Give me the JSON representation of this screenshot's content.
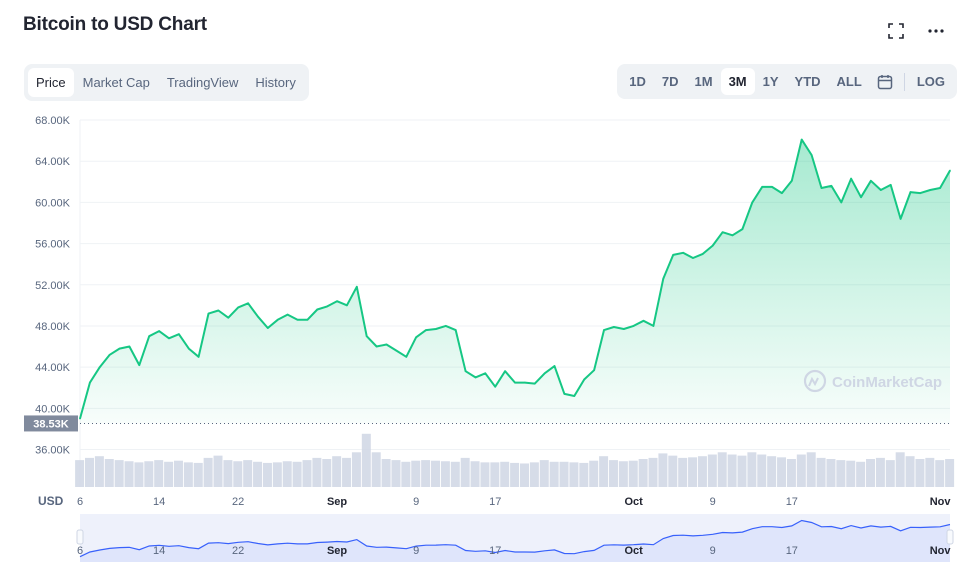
{
  "header": {
    "title": "Bitcoin to USD Chart"
  },
  "icons": {
    "expand": "expand-icon",
    "more": "more-icon"
  },
  "tabs": [
    {
      "label": "Price",
      "active": true
    },
    {
      "label": "Market Cap",
      "active": false
    },
    {
      "label": "TradingView",
      "active": false
    },
    {
      "label": "History",
      "active": false
    }
  ],
  "ranges": [
    {
      "label": "1D",
      "active": false
    },
    {
      "label": "7D",
      "active": false
    },
    {
      "label": "1M",
      "active": false
    },
    {
      "label": "3M",
      "active": true
    },
    {
      "label": "1Y",
      "active": false
    },
    {
      "label": "YTD",
      "active": false
    },
    {
      "label": "ALL",
      "active": false
    }
  ],
  "log_label": "LOG",
  "colors": {
    "line": "#16c784",
    "volume": "#cfd6e4",
    "navigator": "#3861fb",
    "baseline_tag": "#808a9d"
  },
  "watermark": "CoinMarketCap",
  "chart_data": {
    "type": "area",
    "currency_label": "USD",
    "y_ticks": [
      "68.00K",
      "64.00K",
      "60.00K",
      "56.00K",
      "52.00K",
      "48.00K",
      "44.00K",
      "40.00K",
      "36.00K"
    ],
    "ylim": [
      36000,
      68000
    ],
    "baseline_label": "38.53K",
    "baseline_value": 38530,
    "x_ticks": [
      {
        "label": "6",
        "bold": false,
        "day": 0
      },
      {
        "label": "14",
        "bold": false,
        "day": 8
      },
      {
        "label": "22",
        "bold": false,
        "day": 16
      },
      {
        "label": "Sep",
        "bold": true,
        "day": 26
      },
      {
        "label": "9",
        "bold": false,
        "day": 34
      },
      {
        "label": "17",
        "bold": false,
        "day": 42
      },
      {
        "label": "Oct",
        "bold": true,
        "day": 56
      },
      {
        "label": "9",
        "bold": false,
        "day": 64
      },
      {
        "label": "17",
        "bold": false,
        "day": 72
      },
      {
        "label": "Nov",
        "bold": true,
        "day": 87
      }
    ],
    "series": [
      {
        "x": [
          0,
          1,
          2,
          3,
          4,
          5,
          6,
          7,
          8,
          9,
          10,
          11,
          12,
          13,
          14,
          15,
          16,
          17,
          18,
          19,
          20,
          21,
          22,
          23,
          24,
          25,
          26,
          27,
          28,
          29,
          30,
          31,
          32,
          33,
          34,
          35,
          36,
          37,
          38,
          39,
          40,
          41,
          42,
          43,
          44,
          45,
          46,
          47,
          48,
          49,
          50,
          51,
          52,
          53,
          54,
          55,
          56,
          57,
          58,
          59,
          60,
          61,
          62,
          63,
          64,
          65,
          66,
          67,
          68,
          69,
          70,
          71,
          72,
          73,
          74,
          75,
          76,
          77,
          78,
          79,
          80,
          81,
          82,
          83,
          84,
          85,
          86,
          87,
          88
        ],
        "y": [
          39000,
          42500,
          44000,
          45200,
          45800,
          46000,
          44200,
          47000,
          47500,
          46800,
          47200,
          45800,
          45000,
          49200,
          49500,
          48800,
          49800,
          50200,
          48900,
          47800,
          48600,
          49100,
          48600,
          48600,
          49600,
          49900,
          50400,
          50000,
          51800,
          47000,
          46000,
          46200,
          45600,
          45000,
          46900,
          47600,
          47700,
          48000,
          47600,
          43600,
          43000,
          43400,
          42100,
          43600,
          42500,
          42500,
          42400,
          43400,
          44100,
          41400,
          41200,
          42800,
          43700,
          47600,
          47900,
          47700,
          48000,
          48500,
          48000,
          52600,
          54900,
          55100,
          54600,
          55000,
          55800,
          57100,
          56800,
          57400,
          60000,
          61500,
          61500,
          60900,
          62100,
          66100,
          64600,
          61400,
          61600,
          60000,
          62300,
          60500,
          62100,
          61200,
          61700,
          58400,
          61000,
          60900,
          61200,
          61400,
          63100
        ],
        "volume": [
          0.48,
          0.52,
          0.55,
          0.5,
          0.48,
          0.46,
          0.44,
          0.46,
          0.48,
          0.45,
          0.47,
          0.44,
          0.43,
          0.52,
          0.56,
          0.48,
          0.46,
          0.48,
          0.45,
          0.43,
          0.44,
          0.46,
          0.45,
          0.48,
          0.52,
          0.5,
          0.55,
          0.52,
          0.62,
          0.95,
          0.62,
          0.5,
          0.48,
          0.45,
          0.47,
          0.48,
          0.47,
          0.46,
          0.45,
          0.52,
          0.46,
          0.44,
          0.44,
          0.45,
          0.43,
          0.42,
          0.44,
          0.48,
          0.45,
          0.45,
          0.44,
          0.43,
          0.47,
          0.55,
          0.48,
          0.46,
          0.47,
          0.5,
          0.52,
          0.6,
          0.56,
          0.52,
          0.53,
          0.55,
          0.58,
          0.62,
          0.58,
          0.56,
          0.62,
          0.58,
          0.55,
          0.53,
          0.5,
          0.58,
          0.62,
          0.52,
          0.5,
          0.48,
          0.47,
          0.45,
          0.5,
          0.52,
          0.48,
          0.62,
          0.55,
          0.5,
          0.52,
          0.48,
          0.5
        ]
      }
    ],
    "navigator_ticks": [
      "6",
      "14",
      "22",
      "Sep",
      "9",
      "17",
      "Oct",
      "9",
      "17",
      "Nov"
    ]
  }
}
